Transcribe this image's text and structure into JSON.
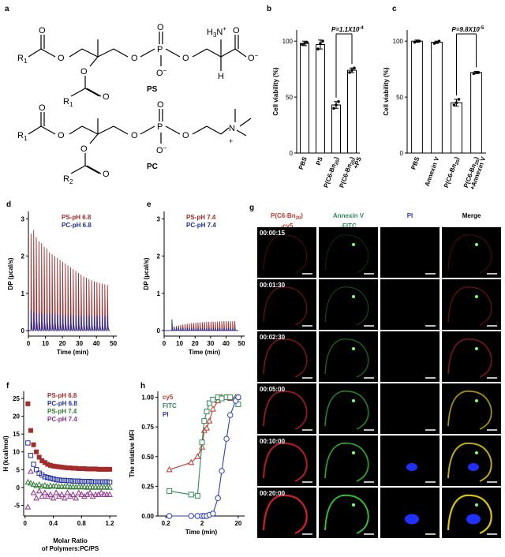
{
  "colors": {
    "ps": "#a52a2a",
    "pc": "#1f2fa0",
    "ps74": "#2e7d32",
    "pc74": "#8e2c8e",
    "cy5": "#c0392b",
    "fitc": "#2e8b57",
    "pi": "#2a3fb5",
    "bar": "#ffffff"
  },
  "panel_a": {
    "label": "a",
    "ps_label": "PS",
    "pc_label": "PC",
    "r1": "R",
    "r1_sub": "1",
    "r2_sub": "2",
    "amine": "H",
    "amine_tail": "N",
    "plus": "+",
    "minus": "−",
    "o": "O",
    "p": "P",
    "n": "N",
    "h": "H"
  },
  "chart_data": [
    {
      "id": "b",
      "type": "bar",
      "panel_label": "b",
      "ylabel": "Cell viability (%)",
      "yticks": [
        0,
        50,
        100
      ],
      "ylim": [
        0,
        110
      ],
      "categories": [
        "PBS",
        "PS",
        "P(C6-Bn20)",
        "P(C6-Bn20)+PS"
      ],
      "category_labels": [
        [
          "PBS"
        ],
        [
          "PS"
        ],
        [
          "P(C6-Bn",
          "20",
          ")"
        ],
        [
          "P(C6-Bn",
          "20",
          ")",
          "+PS"
        ]
      ],
      "values": [
        98,
        97,
        43,
        74
      ],
      "errors": [
        2,
        4,
        3,
        2
      ],
      "points": [
        [
          97,
          98,
          99
        ],
        [
          93,
          98,
          100
        ],
        [
          40,
          43,
          46
        ],
        [
          72,
          74,
          76
        ]
      ],
      "annotation": "P=1.1X10",
      "annotation_exp": "-4",
      "annotation_pair": [
        2,
        3
      ]
    },
    {
      "id": "c",
      "type": "bar",
      "panel_label": "c",
      "ylabel": "Cell viability (%)",
      "yticks": [
        0,
        50,
        100
      ],
      "ylim": [
        0,
        110
      ],
      "categories": [
        "PBS",
        "Annexin V",
        "P(C6-Bn20)",
        "P(C6-Bn20)+Annexin V"
      ],
      "category_labels": [
        [
          "PBS"
        ],
        [
          "Annexin V"
        ],
        [
          "P(C6-Bn",
          "20",
          ")"
        ],
        [
          "P(C6-Bn",
          "20",
          ")",
          "+Annexin V"
        ]
      ],
      "values": [
        100,
        99,
        45,
        72
      ],
      "errors": [
        1,
        1,
        3,
        1
      ],
      "points": [
        [
          99,
          100,
          100
        ],
        [
          98,
          99,
          100
        ],
        [
          43,
          45,
          48
        ],
        [
          71,
          72,
          72
        ]
      ],
      "annotation": "P=9.8X10",
      "annotation_exp": "-5",
      "annotation_pair": [
        2,
        3
      ]
    },
    {
      "id": "d",
      "type": "line",
      "panel_label": "d",
      "xlabel": "Time (min)",
      "ylabel": "DP (µcal/s)",
      "xticks": [
        0,
        10,
        20,
        30,
        40,
        50
      ],
      "yticks": [
        0,
        1,
        2,
        3
      ],
      "xlim": [
        0,
        52
      ],
      "ylim": [
        -0.15,
        3.2
      ],
      "injections": 30,
      "inject_start": 1.5,
      "inject_interval": 1.55,
      "series": [
        {
          "name": "PS-pH 6.8",
          "peaks": [
            2.6,
            2.7,
            2.5,
            2.4,
            2.35,
            2.25,
            2.2,
            2.1,
            2.05,
            2.0,
            1.95,
            1.9,
            1.85,
            1.8,
            1.75,
            1.7,
            1.65,
            1.6,
            1.55,
            1.5,
            1.45,
            1.42,
            1.38,
            1.35,
            1.32,
            1.3,
            1.28,
            1.26,
            1.24,
            1.22
          ]
        },
        {
          "name": "PC-pH 6.8",
          "peaks": [
            0.55,
            0.5,
            0.48,
            0.47,
            0.46,
            0.45,
            0.45,
            0.44,
            0.44,
            0.43,
            0.43,
            0.43,
            0.42,
            0.42,
            0.42,
            0.42,
            0.41,
            0.41,
            0.41,
            0.41,
            0.4,
            0.4,
            0.4,
            0.4,
            0.4,
            0.4,
            0.4,
            0.4,
            0.4,
            0.4
          ]
        }
      ]
    },
    {
      "id": "e",
      "type": "line",
      "panel_label": "e",
      "xlabel": "Time (min)",
      "ylabel": "DP (µcal/s)",
      "xticks": [
        0,
        10,
        20,
        30,
        40,
        50
      ],
      "yticks": [
        0,
        1,
        2,
        3
      ],
      "xlim": [
        0,
        52
      ],
      "ylim": [
        -0.15,
        3.2
      ],
      "injections": 30,
      "inject_start": 5,
      "inject_interval": 1.4,
      "series": [
        {
          "name": "PS-pH 7.4",
          "peaks": [
            0.05,
            0.1,
            0.12,
            0.14,
            0.15,
            0.16,
            0.17,
            0.18,
            0.19,
            0.2,
            0.2,
            0.21,
            0.21,
            0.22,
            0.22,
            0.23,
            0.23,
            0.23,
            0.24,
            0.24,
            0.24,
            0.24,
            0.25,
            0.25,
            0.25,
            0.25,
            0.25,
            0.25,
            0.25,
            0.25
          ]
        },
        {
          "name": "PC-pH 7.4",
          "peaks": [
            0.3,
            0.1,
            0.08,
            0.08,
            0.07,
            0.07,
            0.07,
            0.06,
            0.06,
            0.06,
            0.06,
            0.06,
            0.06,
            0.06,
            0.06,
            0.06,
            0.06,
            0.06,
            0.06,
            0.06,
            0.06,
            0.06,
            0.06,
            0.06,
            0.06,
            0.06,
            0.06,
            0.06,
            0.06,
            0.06
          ]
        }
      ]
    },
    {
      "id": "f",
      "type": "scatter",
      "panel_label": "f",
      "xlabel": "Molar Ratio",
      "xlabel2": "of Polymers:PC/PS",
      "ylabel": "H (kcal/mol)",
      "xticks": [
        0,
        0.4,
        0.8,
        1.2
      ],
      "xtick_labels": [
        "0",
        "0.4",
        "0.8",
        "1.2"
      ],
      "yticks": [
        -5,
        0,
        5,
        10,
        15,
        20,
        25
      ],
      "xlim": [
        -0.02,
        1.3
      ],
      "ylim": [
        -8,
        27
      ],
      "series": [
        {
          "name": "PS-pH 6.8",
          "marker": "square-filled",
          "x": [
            0.04,
            0.08,
            0.12,
            0.16,
            0.2,
            0.24,
            0.28,
            0.32,
            0.36,
            0.4,
            0.44,
            0.48,
            0.52,
            0.56,
            0.6,
            0.64,
            0.68,
            0.72,
            0.76,
            0.8,
            0.84,
            0.88,
            0.92,
            0.96,
            1.0,
            1.04,
            1.08,
            1.12,
            1.16,
            1.2
          ],
          "y": [
            23.5,
            16,
            12,
            10,
            8.5,
            7.5,
            7,
            6.5,
            6.2,
            6,
            5.9,
            5.8,
            5.7,
            5.6,
            5.5,
            5.5,
            5.4,
            5.4,
            5.3,
            5.3,
            5.3,
            5.2,
            5.2,
            5.2,
            5.2,
            5.1,
            5.1,
            5.1,
            5.1,
            5.1
          ]
        },
        {
          "name": "PC-pH 6.8",
          "marker": "square-open",
          "x": [
            0.04,
            0.08,
            0.12,
            0.16,
            0.2,
            0.24,
            0.28,
            0.32,
            0.36,
            0.4,
            0.44,
            0.48,
            0.52,
            0.56,
            0.6,
            0.64,
            0.68,
            0.72,
            0.76,
            0.8,
            0.84,
            0.88,
            0.92,
            0.96,
            1.0,
            1.04,
            1.08,
            1.12,
            1.16,
            1.2
          ],
          "y": [
            12.5,
            9,
            6.5,
            5,
            4,
            3.5,
            3,
            2.8,
            2.6,
            2.4,
            2.2,
            2.1,
            2,
            2,
            1.9,
            1.9,
            1.8,
            1.8,
            1.8,
            1.7,
            1.7,
            1.7,
            1.7,
            1.6,
            1.6,
            1.6,
            1.6,
            1.6,
            1.6,
            1.5
          ]
        },
        {
          "name": "PS-pH 7.4",
          "marker": "triangle-open",
          "x": [
            0.04,
            0.08,
            0.12,
            0.16,
            0.2,
            0.24,
            0.28,
            0.32,
            0.36,
            0.4,
            0.44,
            0.48,
            0.52,
            0.56,
            0.6,
            0.64,
            0.68,
            0.72,
            0.76,
            0.8,
            0.84,
            0.88,
            0.92,
            0.96,
            1.0,
            1.04,
            1.08,
            1.12,
            1.16,
            1.2
          ],
          "y": [
            1.5,
            1.2,
            0.8,
            0.5,
            0.8,
            0.3,
            0.6,
            0.2,
            0.5,
            0.3,
            0.4,
            0.2,
            0.3,
            0.2,
            0.3,
            0.1,
            0.2,
            0.1,
            0.2,
            0.1,
            0.2,
            0,
            0.1,
            0,
            0.1,
            0,
            0.1,
            0,
            0.1,
            0
          ]
        },
        {
          "name": "PC-pH 7.4",
          "marker": "triangle-open",
          "x": [
            0.04,
            0.08,
            0.12,
            0.16,
            0.2,
            0.24,
            0.28,
            0.32,
            0.36,
            0.4,
            0.44,
            0.48,
            0.52,
            0.56,
            0.6,
            0.64,
            0.68,
            0.72,
            0.76,
            0.8,
            0.84,
            0.88,
            0.92,
            0.96,
            1.0,
            1.04,
            1.08,
            1.12,
            1.16,
            1.2
          ],
          "y": [
            -5.5,
            4.5,
            -1.5,
            -3,
            -1,
            -2.5,
            -1.5,
            -2.5,
            -2,
            -3,
            -1.5,
            -2.5,
            -2,
            -3,
            -1.5,
            -2.5,
            -2,
            -3,
            -1.5,
            -2,
            -2.5,
            -2,
            -1.5,
            -2.5,
            -2,
            -2,
            -1.5,
            -2,
            -2,
            -2
          ]
        }
      ]
    },
    {
      "id": "h",
      "type": "line",
      "panel_label": "h",
      "xlabel": "Time (min)",
      "ylabel": "The relative  MFI",
      "xscale": "log",
      "xticks": [
        0.2,
        2,
        20
      ],
      "xtick_labels": [
        "0.2",
        "2",
        "20"
      ],
      "yticks": [
        0,
        0.25,
        0.5,
        0.75,
        1.0
      ],
      "ytick_labels": [
        "0.00",
        "0.25",
        "0.50",
        "0.75",
        "1.00"
      ],
      "xlim": [
        0.12,
        30
      ],
      "ylim": [
        0,
        1.05
      ],
      "series": [
        {
          "name": "cy5",
          "marker": "triangle-open",
          "x": [
            0.25,
            1.0,
            1.5,
            2.0,
            2.3,
            2.7,
            3.2,
            4.0,
            5.5,
            7.0,
            9.5,
            12,
            17,
            20
          ],
          "y": [
            0.39,
            0.45,
            0.5,
            0.58,
            0.72,
            0.74,
            0.8,
            0.9,
            0.97,
            1.0,
            1.0,
            0.99,
            1.0,
            1.0
          ]
        },
        {
          "name": "FITC",
          "marker": "square-open",
          "x": [
            0.25,
            1.0,
            1.5,
            2.0,
            2.3,
            2.7,
            3.2,
            4.0,
            5.5,
            7.0,
            9.5,
            12,
            17,
            20
          ],
          "y": [
            0.21,
            0.18,
            0.17,
            0.62,
            0.8,
            0.88,
            0.95,
            0.98,
            1.0,
            0.99,
            1.0,
            1.0,
            0.98,
            0.94
          ]
        },
        {
          "name": "PI",
          "marker": "circle-open",
          "x": [
            0.25,
            1.0,
            1.5,
            2.0,
            2.3,
            2.7,
            3.2,
            4.0,
            5.5,
            7.0,
            9.5,
            12,
            17,
            20
          ],
          "y": [
            0.0,
            0.0,
            0.0,
            0.0,
            0.0,
            0.0,
            0.01,
            0.02,
            0.15,
            0.38,
            0.65,
            0.85,
            0.97,
            1.0
          ]
        }
      ]
    }
  ],
  "panel_g": {
    "label": "g",
    "columns": [
      {
        "line1": "P(C6-Bn",
        "sub": "20",
        "line1b": ")",
        "line2": "-cy5",
        "color": "#c0392b"
      },
      {
        "line1": "Annexin V",
        "sub": "",
        "line1b": "",
        "line2": "-FITC",
        "color": "#2e8b57"
      },
      {
        "line1": "PI",
        "sub": "",
        "line1b": "",
        "line2": "",
        "color": "#2a3fb5"
      },
      {
        "line1": "Merge",
        "sub": "",
        "line1b": "",
        "line2": "",
        "color": "#000000"
      }
    ],
    "timestamps": [
      "00:00:15",
      "00:01:30",
      "00:02:30",
      "00:05:00",
      "00:10:00",
      "00:20:00"
    ]
  }
}
